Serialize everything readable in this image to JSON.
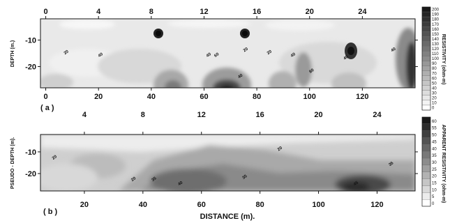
{
  "chart_data": [
    {
      "type": "heatmap",
      "panel_label": "( a )",
      "top_ticks": [
        "0",
        "4",
        "8",
        "12",
        "16",
        "20",
        "24"
      ],
      "top_tick_positions": [
        0,
        20,
        40,
        60,
        80,
        100,
        120
      ],
      "x_ticks": [
        "0",
        "20",
        "40",
        "60",
        "80",
        "100",
        "120"
      ],
      "x_tick_values": [
        0,
        20,
        40,
        60,
        80,
        100,
        120
      ],
      "xlim": [
        -2,
        140
      ],
      "ylabel": "DEPTH (m.)",
      "y_ticks": [
        "-10",
        "-20"
      ],
      "y_tick_values": [
        -10,
        -20
      ],
      "ylim": [
        -28,
        -2
      ],
      "contour_labels": [
        {
          "text": "20",
          "x": 8,
          "y": -15
        },
        {
          "text": "40",
          "x": 21,
          "y": -16
        },
        {
          "text": "40",
          "x": 62,
          "y": -16
        },
        {
          "text": "60",
          "x": 65,
          "y": -16
        },
        {
          "text": "40",
          "x": 74,
          "y": -24
        },
        {
          "text": "20",
          "x": 76,
          "y": -14
        },
        {
          "text": "20",
          "x": 85,
          "y": -15
        },
        {
          "text": "40",
          "x": 94,
          "y": -16
        },
        {
          "text": "80",
          "x": 101,
          "y": -22
        },
        {
          "text": "40",
          "x": 114,
          "y": -17
        },
        {
          "text": "40",
          "x": 132,
          "y": -14
        }
      ],
      "colorbar": {
        "label": "RESISTIVITY (ohm-m)",
        "ticks": [
          "200",
          "190",
          "180",
          "170",
          "160",
          "150",
          "140",
          "130",
          "120",
          "110",
          "100",
          "90",
          "80",
          "70",
          "60",
          "50",
          "40",
          "30",
          "20",
          "10",
          "0"
        ]
      }
    },
    {
      "type": "heatmap",
      "panel_label": "( b )",
      "top_ticks": [
        "4",
        "8",
        "12",
        "16",
        "20",
        "24"
      ],
      "top_tick_positions": [
        20,
        40,
        60,
        80,
        100,
        120
      ],
      "x_ticks": [
        "20",
        "40",
        "60",
        "80",
        "100",
        "120"
      ],
      "x_tick_values": [
        20,
        40,
        60,
        80,
        100,
        120
      ],
      "xlim": [
        5,
        133
      ],
      "xlabel": "DISTANCE (m).",
      "ylabel": "PSEUDO - DEPTH (m).",
      "y_ticks": [
        "-10",
        "-20"
      ],
      "y_tick_values": [
        -10,
        -20
      ],
      "ylim": [
        -28,
        -2
      ],
      "contour_labels": [
        {
          "text": "20",
          "x": 10,
          "y": -13
        },
        {
          "text": "20",
          "x": 37,
          "y": -23
        },
        {
          "text": "35",
          "x": 44,
          "y": -23
        },
        {
          "text": "40",
          "x": 53,
          "y": -25
        },
        {
          "text": "35",
          "x": 75,
          "y": -22
        },
        {
          "text": "20",
          "x": 87,
          "y": -9
        },
        {
          "text": "35",
          "x": 125,
          "y": -16
        },
        {
          "text": "45",
          "x": 113,
          "y": -25
        }
      ],
      "colorbar": {
        "label": "APPARENT RESISTIVITY (ohm-m)",
        "ticks": [
          "60",
          "55",
          "50",
          "45",
          "40",
          "35",
          "30",
          "25",
          "20",
          "15",
          "10",
          "5",
          "0"
        ]
      }
    }
  ]
}
